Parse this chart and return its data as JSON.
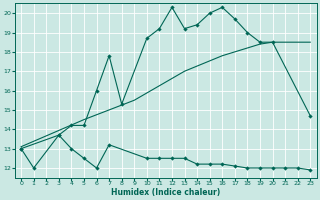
{
  "xlabel": "Humidex (Indice chaleur)",
  "bg_color": "#cbe8e3",
  "grid_color": "#ffffff",
  "line_color": "#006655",
  "xlim": [
    -0.5,
    23.5
  ],
  "ylim": [
    11.5,
    20.5
  ],
  "yticks": [
    12,
    13,
    14,
    15,
    16,
    17,
    18,
    19,
    20
  ],
  "xticks": [
    0,
    1,
    2,
    3,
    4,
    5,
    6,
    7,
    8,
    9,
    10,
    11,
    12,
    13,
    14,
    15,
    16,
    17,
    18,
    19,
    20,
    21,
    22,
    23
  ],
  "s1x": [
    0,
    1,
    3,
    4,
    5,
    6,
    7,
    10,
    11,
    12,
    13,
    14,
    15,
    16,
    17,
    18,
    19,
    20,
    21,
    22,
    23
  ],
  "s1y": [
    13.0,
    12.0,
    13.7,
    13.0,
    12.5,
    12.0,
    13.2,
    12.5,
    12.5,
    12.5,
    12.5,
    12.2,
    12.2,
    12.2,
    12.1,
    12.0,
    12.0,
    12.0,
    12.0,
    12.0,
    11.9
  ],
  "s2x": [
    0,
    3,
    4,
    5,
    6,
    7,
    8,
    10,
    11,
    12,
    13,
    14,
    15,
    16,
    17,
    18,
    19,
    20,
    23
  ],
  "s2y": [
    13.0,
    13.7,
    14.2,
    14.2,
    16.0,
    17.8,
    15.3,
    18.7,
    19.2,
    20.3,
    19.2,
    19.4,
    20.0,
    20.3,
    19.7,
    19.0,
    18.5,
    18.5,
    14.7
  ],
  "s3x": [
    0,
    5,
    9,
    13,
    16,
    19,
    20,
    21,
    22,
    23
  ],
  "s3y": [
    13.1,
    14.5,
    15.5,
    17.0,
    17.8,
    18.4,
    18.5,
    18.5,
    18.5,
    18.5
  ]
}
